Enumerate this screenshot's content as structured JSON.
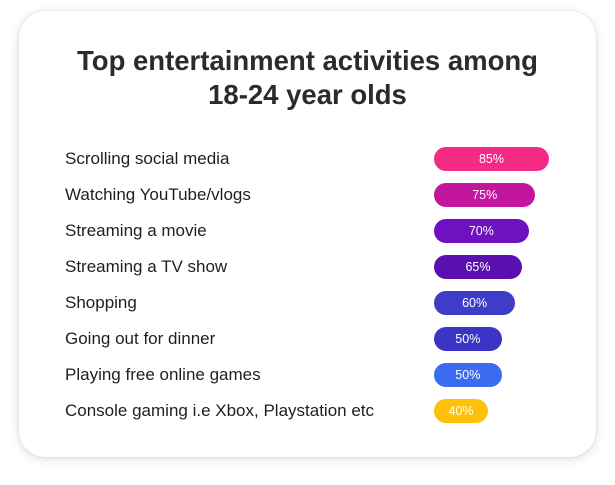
{
  "chart_data": {
    "type": "bar",
    "orientation": "horizontal",
    "title": "Top entertainment activities among 18-24 year olds",
    "title_lines": [
      "Top entertainment activities among",
      "18-24 year olds"
    ],
    "categories": [
      "Scrolling social media",
      "Watching YouTube/vlogs",
      "Streaming a movie",
      "Streaming a TV show",
      "Shopping",
      "Going out for dinner",
      "Playing free online games",
      "Console gaming i.e Xbox, Playstation etc"
    ],
    "values": [
      85,
      75,
      70,
      65,
      60,
      50,
      50,
      40
    ],
    "value_labels": [
      "85%",
      "75%",
      "70%",
      "65%",
      "60%",
      "50%",
      "50%",
      "40%"
    ],
    "unit": "%",
    "colors": [
      "#f42a87",
      "#c3159e",
      "#6e11c0",
      "#5a0fb0",
      "#3f3cc7",
      "#3a35c4",
      "#3b6cf0",
      "#ffc107"
    ],
    "xlim": [
      0,
      100
    ],
    "grid": false,
    "legend": "none"
  }
}
